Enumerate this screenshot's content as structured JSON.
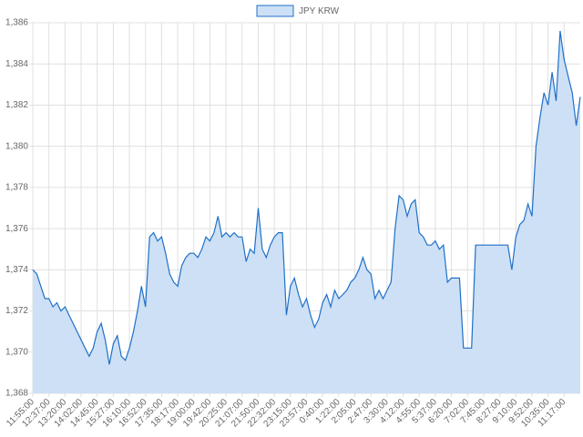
{
  "chart_data": {
    "type": "line",
    "series": [
      {
        "name": "JPY KRW",
        "color": "#2070c8",
        "fill": "#cde0f5",
        "values": [
          1374,
          1373.8,
          1373.2,
          1372.6,
          1372.6,
          1372.2,
          1372.4,
          1372,
          1372.2,
          1371.8,
          1371.4,
          1371,
          1370.6,
          1370.2,
          1369.8,
          1370.2,
          1371,
          1371.4,
          1370.6,
          1369.4,
          1370.4,
          1370.8,
          1369.8,
          1369.6,
          1370.2,
          1371,
          1372,
          1373.2,
          1372.2,
          1375.6,
          1375.8,
          1375.4,
          1375.6,
          1374.8,
          1373.8,
          1373.4,
          1373.2,
          1374.2,
          1374.6,
          1374.8,
          1374.8,
          1374.6,
          1375,
          1375.6,
          1375.4,
          1375.8,
          1376.6,
          1375.6,
          1375.8,
          1375.6,
          1375.8,
          1375.6,
          1375.6,
          1374.4,
          1375,
          1374.8,
          1377,
          1375,
          1374.6,
          1375.2,
          1375.6,
          1375.8,
          1375.8,
          1371.8,
          1373.2,
          1373.6,
          1372.8,
          1372.2,
          1372.6,
          1371.8,
          1371.2,
          1371.6,
          1372.4,
          1372.8,
          1372.2,
          1373,
          1372.6,
          1372.8,
          1373,
          1373.4,
          1373.6,
          1374,
          1374.6,
          1374,
          1373.8,
          1372.6,
          1373,
          1372.6,
          1373,
          1373.4,
          1376,
          1377.6,
          1377.4,
          1376.6,
          1377.2,
          1377.4,
          1375.8,
          1375.6,
          1375.2,
          1375.2,
          1375.4,
          1375,
          1375.2,
          1373.4,
          1373.6,
          1373.6,
          1373.6,
          1370.2,
          1370.2,
          1370.2,
          1375.2,
          1375.2,
          1375.2,
          1375.2,
          1375.2,
          1375.2,
          1375.2,
          1375.2,
          1375.2,
          1374,
          1375.6,
          1376.2,
          1376.4,
          1377.2,
          1376.6,
          1380,
          1381.4,
          1382.6,
          1382,
          1383.6,
          1382.2,
          1385.6,
          1384.2,
          1383.4,
          1382.6,
          1381,
          1382.4
        ]
      }
    ],
    "categories": [
      "11:55:00",
      null,
      null,
      null,
      "12:37:00",
      null,
      null,
      null,
      "13:20:00",
      null,
      null,
      null,
      "14:02:00",
      null,
      null,
      null,
      "14:45:00",
      null,
      null,
      null,
      "15:27:00",
      null,
      null,
      null,
      "16:10:00",
      null,
      null,
      null,
      "16:52:00",
      null,
      null,
      null,
      "17:35:00",
      null,
      null,
      null,
      "18:17:00",
      null,
      null,
      null,
      "19:00:00",
      null,
      null,
      null,
      "19:42:00",
      null,
      null,
      null,
      "20:25:00",
      null,
      null,
      null,
      "21:07:00",
      null,
      null,
      null,
      "21:50:00",
      null,
      null,
      null,
      "22:32:00",
      null,
      null,
      null,
      "23:15:00",
      null,
      null,
      null,
      "23:57:00",
      null,
      null,
      null,
      "0:40:00",
      null,
      null,
      null,
      "1:22:00",
      null,
      null,
      null,
      "2:05:00",
      null,
      null,
      null,
      "2:47:00",
      null,
      null,
      null,
      "3:30:00",
      null,
      null,
      null,
      "4:12:00",
      null,
      null,
      null,
      "4:55:00",
      null,
      null,
      null,
      "5:37:00",
      null,
      null,
      null,
      "6:20:00",
      null,
      null,
      null,
      "7:02:00",
      null,
      null,
      null,
      "7:45:00",
      null,
      null,
      null,
      "8:27:00",
      null,
      null,
      null,
      "9:10:00",
      null,
      null,
      null,
      "9:52:00",
      null,
      null,
      null,
      "10:35:00",
      null,
      null,
      null,
      "11:17:00",
      null,
      null,
      null,
      null
    ],
    "ylim": [
      1368,
      1386
    ],
    "yticks": [
      {
        "value": 1368,
        "label": "1,368"
      },
      {
        "value": 1370,
        "label": "1,370"
      },
      {
        "value": 1372,
        "label": "1,372"
      },
      {
        "value": 1374,
        "label": "1,374"
      },
      {
        "value": 1376,
        "label": "1,376"
      },
      {
        "value": 1378,
        "label": "1,378"
      },
      {
        "value": 1380,
        "label": "1,380"
      },
      {
        "value": 1382,
        "label": "1,382"
      },
      {
        "value": 1384,
        "label": "1,384"
      },
      {
        "value": 1386,
        "label": "1,386"
      }
    ],
    "grid": true,
    "legend": "top"
  }
}
